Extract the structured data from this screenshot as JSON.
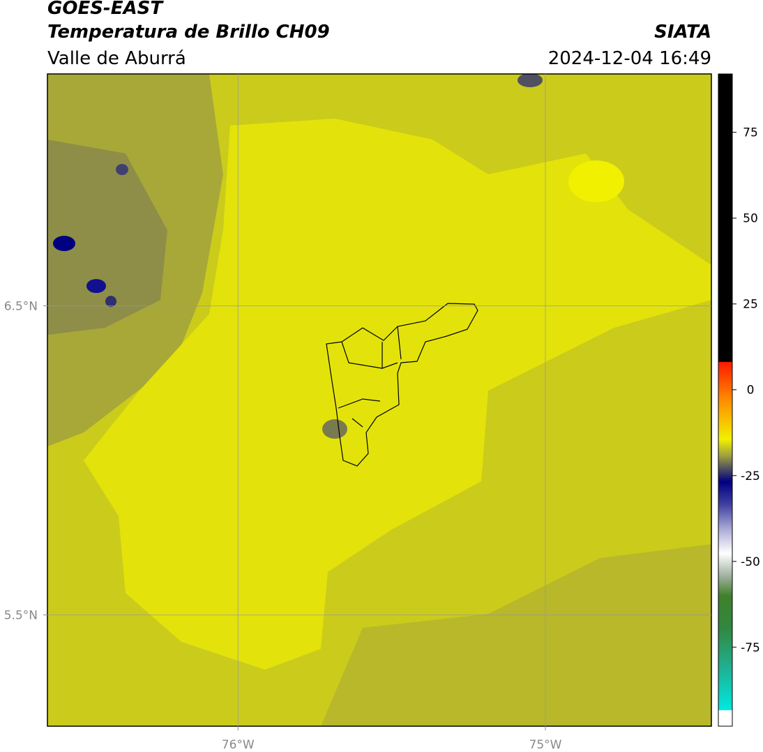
{
  "header": {
    "title": "GOES-EAST",
    "subtitle": "Temperatura de Brillo CH09",
    "source": "SIATA",
    "region": "Valle de Aburrá",
    "timestamp": "2024-12-04 16:49"
  },
  "map": {
    "xlim": [
      -76.62,
      -74.46
    ],
    "ylim": [
      5.14,
      7.25
    ],
    "xticks": [
      {
        "value": -76,
        "label": "76°W"
      },
      {
        "value": -75,
        "label": "75°W"
      }
    ],
    "yticks": [
      {
        "value": 6.5,
        "label": "6.5°N"
      },
      {
        "value": 5.5,
        "label": "5.5°N"
      }
    ],
    "grid": true
  },
  "colorbar": {
    "lim": [
      -98,
      92
    ],
    "ticks": [
      75,
      50,
      25,
      0,
      -25,
      -50,
      -75
    ]
  }
}
